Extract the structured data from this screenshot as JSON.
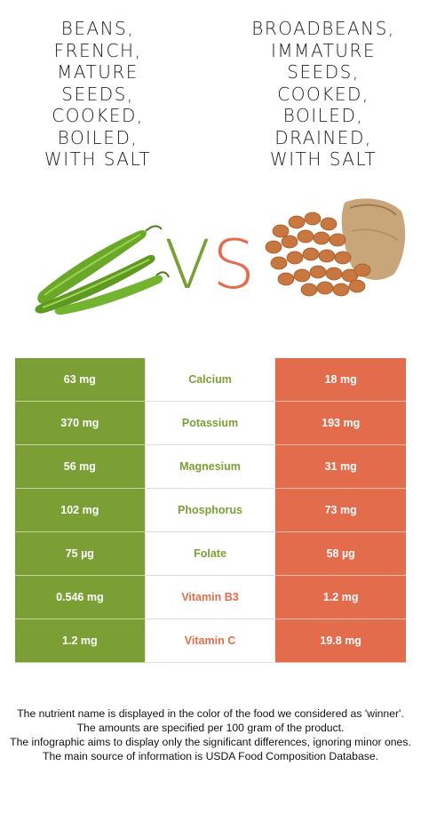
{
  "left_food": {
    "title": "Beans,\nFrench,\nmature\nseeds,\ncooked,\nboiled,\nwith salt",
    "image_icon": "green-bean-pods",
    "color": "#7b9f35"
  },
  "right_food": {
    "title": "Broadbeans,\nimmature\nseeds,\ncooked,\nboiled,\ndrained,\nwith salt",
    "image_icon": "broad-beans-sack",
    "color": "#e36c4c"
  },
  "vs": {
    "v": "V",
    "s": "S",
    "v_color": "#7b9f35",
    "s_color": "#e36c4c"
  },
  "rows": [
    {
      "left": "63 mg",
      "nutrient": "Calcium",
      "right": "18 mg",
      "winner_color": "#7b9f35"
    },
    {
      "left": "370 mg",
      "nutrient": "Potassium",
      "right": "193 mg",
      "winner_color": "#7b9f35"
    },
    {
      "left": "56 mg",
      "nutrient": "Magnesium",
      "right": "31 mg",
      "winner_color": "#7b9f35"
    },
    {
      "left": "102 mg",
      "nutrient": "Phosphorus",
      "right": "73 mg",
      "winner_color": "#7b9f35"
    },
    {
      "left": "75 µg",
      "nutrient": "Folate",
      "right": "58 µg",
      "winner_color": "#7b9f35"
    },
    {
      "left": "0.546 mg",
      "nutrient": "Vitamin B3",
      "right": "1.2 mg",
      "winner_color": "#e36c4c"
    },
    {
      "left": "1.2 mg",
      "nutrient": "Vitamin C",
      "right": "19.8 mg",
      "winner_color": "#e36c4c"
    }
  ],
  "footer": [
    "The nutrient name is displayed in the color of the food we considered as 'winner'.",
    "The amounts are specified per 100 gram of the product.",
    "The infographic aims to display only the significant differences, ignoring minor ones.",
    "The main source of information is USDA Food Composition Database."
  ]
}
